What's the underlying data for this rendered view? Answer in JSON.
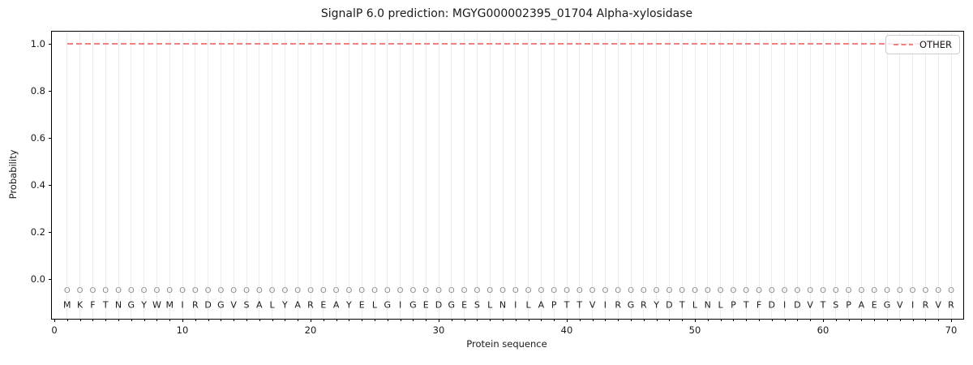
{
  "figure": {
    "title": "SignalP 6.0 prediction: MGYG000002395_01704 Alpha-xylosidase",
    "xlabel": "Protein sequence",
    "ylabel": "Probability",
    "legend": {
      "label": "OTHER"
    }
  },
  "chart_data": {
    "type": "line",
    "title": "SignalP 6.0 prediction: MGYG000002395_01704 Alpha-xylosidase",
    "xlabel": "Protein sequence",
    "ylabel": "Probability",
    "xlim": [
      -0.2,
      71
    ],
    "ylim": [
      -0.17,
      1.05
    ],
    "x_ticks": [
      0,
      10,
      20,
      30,
      40,
      50,
      60,
      70
    ],
    "y_ticks": [
      0.0,
      0.2,
      0.4,
      0.6,
      0.8,
      1.0
    ],
    "y_tick_labels": [
      "0.0",
      "0.2",
      "0.4",
      "0.6",
      "0.8",
      "1.0"
    ],
    "grid": "light vertical gridline at every residue position 1-70",
    "legend_position": "upper right",
    "series": [
      {
        "name": "OTHER",
        "style": "dashed",
        "color": "#ee8181",
        "x": [
          1,
          2,
          3,
          4,
          5,
          6,
          7,
          8,
          9,
          10,
          11,
          12,
          13,
          14,
          15,
          16,
          17,
          18,
          19,
          20,
          21,
          22,
          23,
          24,
          25,
          26,
          27,
          28,
          29,
          30,
          31,
          32,
          33,
          34,
          35,
          36,
          37,
          38,
          39,
          40,
          41,
          42,
          43,
          44,
          45,
          46,
          47,
          48,
          49,
          50,
          51,
          52,
          53,
          54,
          55,
          56,
          57,
          58,
          59,
          60,
          61,
          62,
          63,
          64,
          65,
          66,
          67,
          68,
          69,
          70
        ],
        "values": [
          1.0,
          1.0,
          1.0,
          1.0,
          1.0,
          1.0,
          1.0,
          1.0,
          1.0,
          1.0,
          1.0,
          1.0,
          1.0,
          1.0,
          1.0,
          1.0,
          1.0,
          1.0,
          1.0,
          1.0,
          1.0,
          1.0,
          1.0,
          1.0,
          1.0,
          1.0,
          1.0,
          1.0,
          1.0,
          1.0,
          1.0,
          1.0,
          1.0,
          1.0,
          1.0,
          1.0,
          1.0,
          1.0,
          1.0,
          1.0,
          1.0,
          1.0,
          1.0,
          1.0,
          1.0,
          1.0,
          1.0,
          1.0,
          1.0,
          1.0,
          1.0,
          1.0,
          1.0,
          1.0,
          1.0,
          1.0,
          1.0,
          1.0,
          1.0,
          1.0,
          1.0,
          1.0,
          1.0,
          1.0,
          1.0,
          1.0,
          1.0,
          1.0,
          1.0,
          1.0
        ]
      }
    ],
    "sequence": "MKFTNGYWMIRDGVSALYAREAYELGIGEDGESLNILAPTTVIRGRYDTLNLPTFDIDVTSPAEGVIRVR",
    "per_position_label": "O",
    "per_position_label_color": "#8a8a8a",
    "per_position_label_y": -0.05,
    "sequence_letter_y": -0.11
  }
}
